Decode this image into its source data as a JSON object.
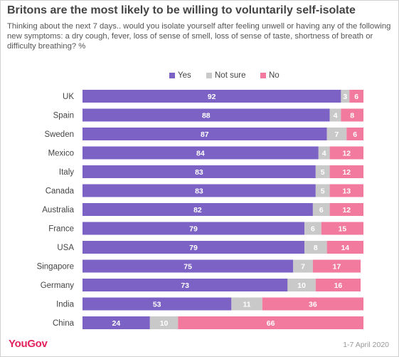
{
  "title": "Britons are the most likely to be willing to voluntarily self-isolate",
  "subtitle": "Thinking about the next 7 days.. would you isolate yourself after feeling unwell or having any of the following new symptoms: a dry cough, fever, loss of sense of smell, loss of sense of taste, shortness of breath or difficulty breathing? %",
  "brand": "YouGov",
  "date": "1-7 April 2020",
  "colors": {
    "yes": "#7b62c4",
    "not_sure": "#c9c9c9",
    "no": "#f27a9f"
  },
  "chart_data": {
    "type": "bar",
    "orientation": "horizontal",
    "stacked": true,
    "legend_position": "top",
    "categories": [
      "UK",
      "Spain",
      "Sweden",
      "Mexico",
      "Italy",
      "Canada",
      "Australia",
      "France",
      "USA",
      "Singapore",
      "Germany",
      "India",
      "China"
    ],
    "series": [
      {
        "name": "Yes",
        "values": [
          92,
          88,
          87,
          84,
          83,
          83,
          82,
          79,
          79,
          75,
          73,
          53,
          24
        ]
      },
      {
        "name": "Not sure",
        "values": [
          3,
          4,
          7,
          4,
          5,
          5,
          6,
          6,
          8,
          7,
          10,
          11,
          10
        ]
      },
      {
        "name": "No",
        "values": [
          6,
          8,
          6,
          12,
          12,
          13,
          12,
          15,
          14,
          17,
          16,
          36,
          66
        ]
      }
    ],
    "xlim": [
      0,
      100
    ]
  }
}
